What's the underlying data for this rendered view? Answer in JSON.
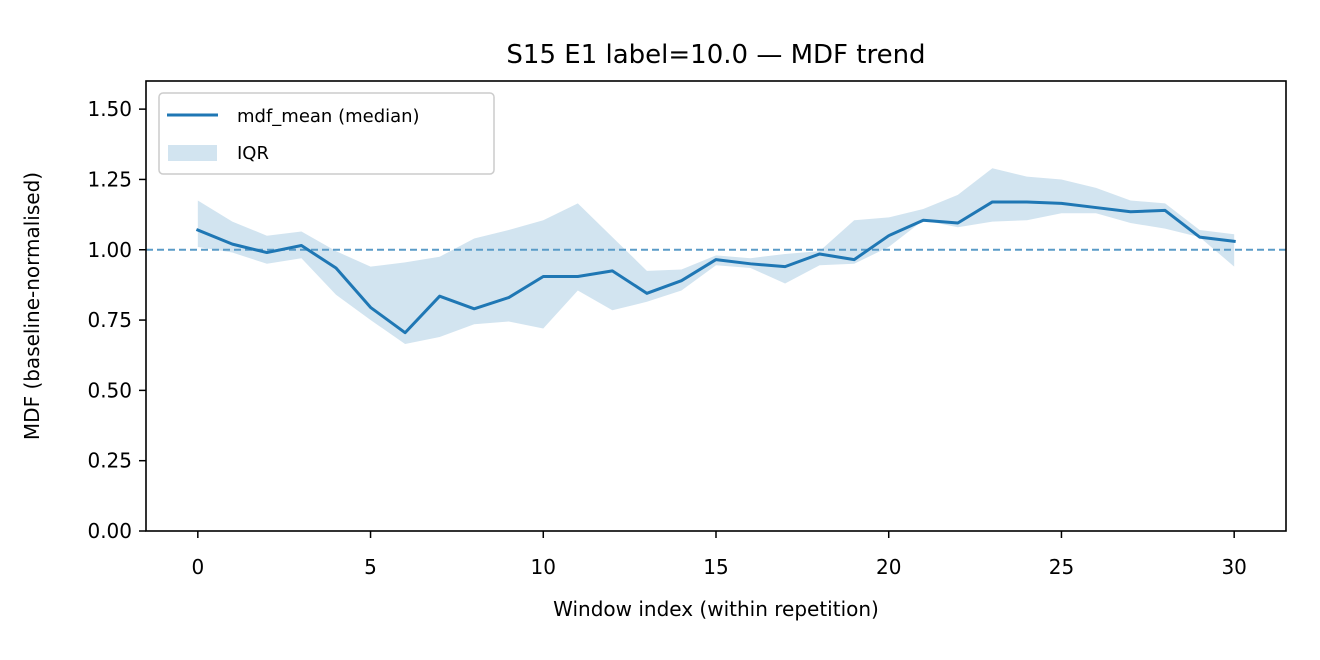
{
  "chart_data": {
    "type": "line",
    "title": "S15 E1 label=10.0 — MDF trend",
    "xlabel": "Window index (within repetition)",
    "ylabel": "MDF (baseline-normalised)",
    "xlim": [
      -1.5,
      31.5
    ],
    "ylim": [
      0.0,
      1.6
    ],
    "xticks": [
      0,
      5,
      10,
      15,
      20,
      25,
      30
    ],
    "xtick_labels": [
      "0",
      "5",
      "10",
      "15",
      "20",
      "25",
      "30"
    ],
    "yticks": [
      0.0,
      0.25,
      0.5,
      0.75,
      1.0,
      1.25,
      1.5
    ],
    "ytick_labels": [
      "0.00",
      "0.25",
      "0.50",
      "0.75",
      "1.00",
      "1.25",
      "1.50"
    ],
    "grid": false,
    "legend_position": "upper-left",
    "reference_line": {
      "y": 1.0,
      "style": "dashed",
      "color": "#5a9bc7"
    },
    "x": [
      0,
      1,
      2,
      3,
      4,
      5,
      6,
      7,
      8,
      9,
      10,
      11,
      12,
      13,
      14,
      15,
      16,
      17,
      18,
      19,
      20,
      21,
      22,
      23,
      24,
      25,
      26,
      27,
      28,
      29,
      30
    ],
    "series": [
      {
        "name": "mdf_mean (median)",
        "kind": "line",
        "color": "#1f77b4",
        "values": [
          1.07,
          1.02,
          0.99,
          1.015,
          0.935,
          0.795,
          0.705,
          0.835,
          0.79,
          0.83,
          0.905,
          0.905,
          0.925,
          0.845,
          0.89,
          0.965,
          0.95,
          0.94,
          0.985,
          0.965,
          1.05,
          1.105,
          1.095,
          1.17,
          1.17,
          1.165,
          1.15,
          1.135,
          1.14,
          1.045,
          1.03
        ]
      },
      {
        "name": "IQR",
        "kind": "band",
        "color": "#1f77b4",
        "opacity": 0.2,
        "lower": [
          1.01,
          0.99,
          0.95,
          0.97,
          0.84,
          0.75,
          0.665,
          0.69,
          0.735,
          0.745,
          0.72,
          0.855,
          0.785,
          0.815,
          0.855,
          0.945,
          0.935,
          0.88,
          0.945,
          0.95,
          1.01,
          1.105,
          1.08,
          1.1,
          1.105,
          1.13,
          1.13,
          1.095,
          1.075,
          1.045,
          0.94
        ],
        "upper": [
          1.175,
          1.1,
          1.05,
          1.065,
          0.995,
          0.94,
          0.955,
          0.975,
          1.04,
          1.07,
          1.105,
          1.165,
          1.045,
          0.925,
          0.93,
          0.98,
          0.97,
          0.985,
          0.995,
          1.105,
          1.115,
          1.145,
          1.195,
          1.29,
          1.26,
          1.25,
          1.22,
          1.175,
          1.165,
          1.07,
          1.055
        ]
      }
    ]
  }
}
